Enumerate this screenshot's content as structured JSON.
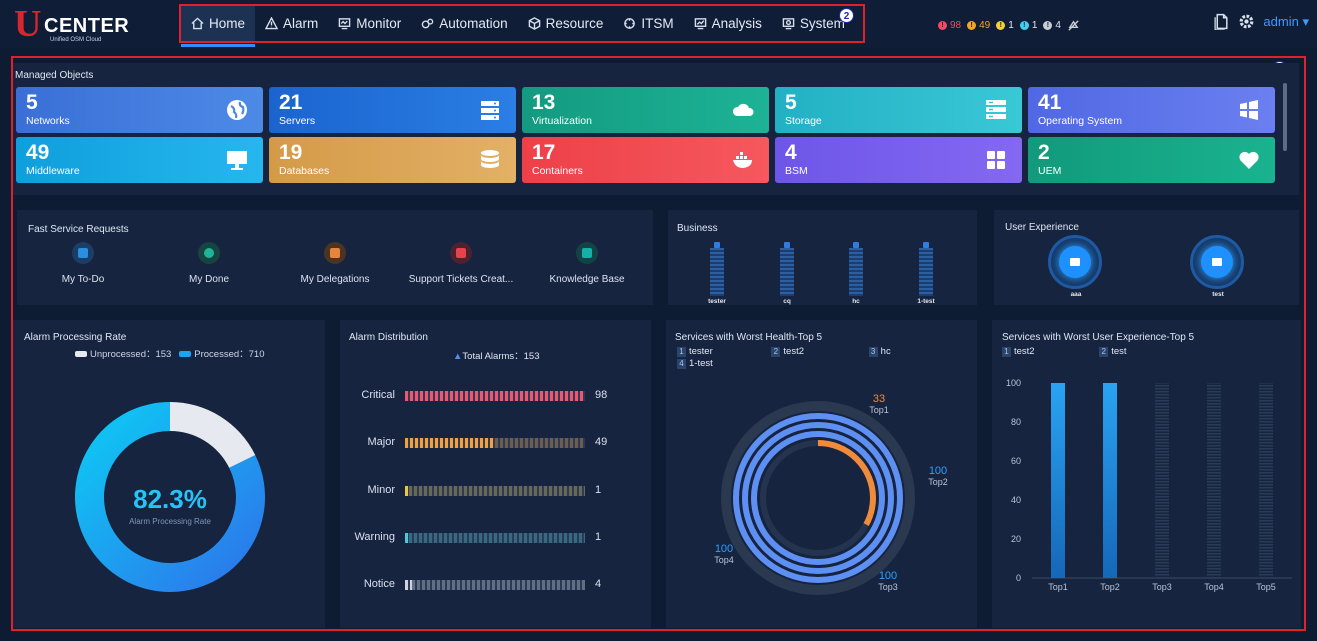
{
  "app": {
    "logo_letter": "U",
    "logo_name": "CENTER",
    "logo_sub": "Unified OSM Cloud"
  },
  "nav": {
    "items": [
      {
        "label": "Home",
        "icon": "home-icon"
      },
      {
        "label": "Alarm",
        "icon": "warning-icon"
      },
      {
        "label": "Monitor",
        "icon": "monitor-icon"
      },
      {
        "label": "Automation",
        "icon": "automation-icon"
      },
      {
        "label": "Resource",
        "icon": "resource-icon"
      },
      {
        "label": "ITSM",
        "icon": "itsm-icon"
      },
      {
        "label": "Analysis",
        "icon": "analysis-icon"
      },
      {
        "label": "System",
        "icon": "system-icon"
      }
    ],
    "active_index": 0,
    "frame_marker": "2"
  },
  "header_alarms": [
    {
      "count": "98",
      "color": "#f24a66"
    },
    {
      "count": "49",
      "color": "#f5a623"
    },
    {
      "count": "1",
      "color": "#f2d03a"
    },
    {
      "count": "1",
      "color": "#3fd2f0"
    },
    {
      "count": "4",
      "color": "#c8cdd6"
    }
  ],
  "header_user": "admin",
  "content_marker": "3",
  "managed_objects": {
    "title": "Managed Objects",
    "tiles": [
      {
        "count": "5",
        "label": "Networks",
        "icon": "globe-icon",
        "color": "#3b77d9"
      },
      {
        "count": "21",
        "label": "Servers",
        "icon": "server-icon",
        "color": "#1f6fd6"
      },
      {
        "count": "13",
        "label": "Virtualization",
        "icon": "cloud-icon",
        "color": "#18a38a"
      },
      {
        "count": "5",
        "label": "Storage",
        "icon": "storage-icon",
        "color": "#2ab8c9"
      },
      {
        "count": "41",
        "label": "Operating System",
        "icon": "windows-icon",
        "color": "#5a6fe8"
      },
      {
        "count": "49",
        "label": "Middleware",
        "icon": "desktop-icon",
        "color": "#14a6e0"
      },
      {
        "count": "19",
        "label": "Databases",
        "icon": "database-icon",
        "color": "#d6a04f"
      },
      {
        "count": "17",
        "label": "Containers",
        "icon": "docker-icon",
        "color": "#f0474e"
      },
      {
        "count": "4",
        "label": "BSM",
        "icon": "grid-icon",
        "color": "#7a5ef0"
      },
      {
        "count": "2",
        "label": "UEM",
        "icon": "heart-icon",
        "color": "#15a082"
      }
    ]
  },
  "fast_service": {
    "title": "Fast Service Requests",
    "items": [
      {
        "label": "My To-Do",
        "color": "#2b8fe0"
      },
      {
        "label": "My Done",
        "color": "#1fb39a"
      },
      {
        "label": "My Delegations",
        "color": "#e8853a"
      },
      {
        "label": "Support Tickets Creat...",
        "color": "#e8434d"
      },
      {
        "label": "Knowledge Base",
        "color": "#17b0a8"
      }
    ]
  },
  "business": {
    "title": "Business",
    "items": [
      "tester",
      "cq",
      "hc",
      "1-test"
    ]
  },
  "user_experience": {
    "title": "User Experience",
    "items": [
      "aaa",
      "test"
    ]
  },
  "alarm_processing": {
    "title": "Alarm Processing Rate",
    "unprocessed_label": "Unprocessed：153",
    "processed_label": "Processed：710",
    "rate_text": "82.3%",
    "rate_caption": "Alarm Processing Rate",
    "chart_data": {
      "type": "pie",
      "categories": [
        "Unprocessed",
        "Processed"
      ],
      "values": [
        153,
        710
      ],
      "colors": [
        "#e6e9ef",
        "#1fa2f0"
      ]
    }
  },
  "alarm_distribution": {
    "title": "Alarm Distribution",
    "total_label": "Total Alarms：153",
    "chart_data": {
      "type": "bar",
      "categories": [
        "Critical",
        "Major",
        "Minor",
        "Warning",
        "Notice"
      ],
      "values": [
        98,
        49,
        1,
        1,
        4
      ],
      "colors": [
        "#f2566f",
        "#f5a13a",
        "#e8c64a",
        "#4fc7d8",
        "#cfd4dc"
      ],
      "xlim": [
        0,
        98
      ]
    }
  },
  "worst_health": {
    "title": "Services with Worst Health-Top 5",
    "legend": [
      {
        "num": "1",
        "name": "tester"
      },
      {
        "num": "2",
        "name": "test2"
      },
      {
        "num": "3",
        "name": "hc"
      },
      {
        "num": "4",
        "name": "1-test"
      }
    ],
    "chart_data": {
      "type": "radial-bar",
      "categories": [
        "Top1",
        "Top2",
        "Top3",
        "Top4"
      ],
      "values": [
        33,
        100,
        100,
        100
      ],
      "max": 100
    }
  },
  "worst_ux": {
    "title": "Services with Worst User Experience-Top 5",
    "legend": [
      {
        "num": "1",
        "name": "test2"
      },
      {
        "num": "2",
        "name": "test"
      }
    ],
    "chart_data": {
      "type": "bar",
      "categories": [
        "Top1",
        "Top2",
        "Top3",
        "Top4",
        "Top5"
      ],
      "values": [
        100,
        100,
        0,
        0,
        0
      ],
      "ylim": [
        0,
        100
      ],
      "yticks": [
        0,
        20,
        40,
        60,
        80,
        100
      ]
    }
  }
}
